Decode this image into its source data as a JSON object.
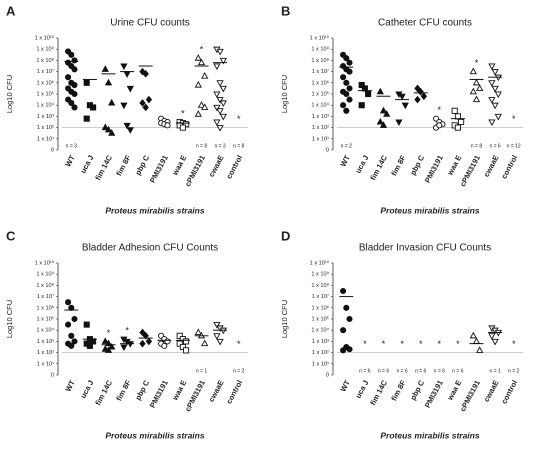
{
  "chart_data": [
    {
      "type": "dot",
      "letter": "A",
      "title": "Urine CFU counts",
      "ylabel": "Log10 CFU",
      "xlabel": "Proteus mirabilis strains",
      "categories": [
        "WT",
        "uca J",
        "fim 14C",
        "fim 8F",
        "pbp C",
        "PMI3191",
        "waa E",
        "cPMI3191",
        "cwaaE",
        "control"
      ],
      "markers": [
        "circle",
        "square",
        "triangle",
        "triangle-down",
        "diamond",
        "circle-open",
        "square-open",
        "triangle-open",
        "triangle-down-open",
        null
      ],
      "values": [
        [
          8.8,
          8.5,
          8.0,
          7.8,
          7.5,
          7.2,
          6.5,
          6.0,
          5.8,
          5.5,
          5.2,
          5.0,
          4.5,
          4.2,
          3.8
        ],
        [
          6.0,
          4.0,
          3.8,
          2.8
        ],
        [
          7.2,
          6.0,
          4.2,
          2.0,
          1.8,
          1.5
        ],
        [
          7.5,
          6.8,
          5.5,
          4.0,
          2.2,
          1.8
        ],
        [
          7.0,
          6.8,
          4.5,
          4.2,
          3.8
        ],
        [
          2.8,
          2.6,
          2.5,
          2.4,
          2.3,
          2.2
        ],
        [
          2.5,
          2.4,
          2.3,
          2.2,
          2.0
        ],
        [
          8.2,
          7.8,
          6.6,
          5.8,
          4.0,
          3.8,
          3.2
        ],
        [
          9.0,
          8.8,
          8.0,
          7.5,
          6.0,
          5.5,
          5.0,
          4.5,
          4.2,
          3.8,
          3.5,
          3.0,
          2.5,
          2.0
        ],
        []
      ],
      "means": [
        7.9,
        6.3,
        6.8,
        7.0,
        7.5,
        null,
        2.4,
        7.5,
        7.8,
        null
      ],
      "stars": [
        null,
        null,
        null,
        null,
        null,
        null,
        "*",
        "*",
        null,
        "*"
      ],
      "n_labels": [
        "n = 3",
        null,
        null,
        null,
        null,
        null,
        null,
        "n = 8",
        "n = 3",
        "n = 8"
      ],
      "threshold": 2,
      "color": "#111111",
      "ylim": [
        0,
        10
      ],
      "yticks": [
        0,
        {
          "value": 1,
          "label": "1 x 10¹"
        },
        {
          "value": 2,
          "label": "1 x 10²"
        },
        {
          "value": 3,
          "label": "1 x 10³"
        },
        {
          "value": 4,
          "label": "1 x 10⁴"
        },
        {
          "value": 5,
          "label": "1 x 10⁵"
        },
        {
          "value": 6,
          "label": "1 x 10⁶"
        },
        {
          "value": 7,
          "label": "1 x 10⁷"
        },
        {
          "value": 8,
          "label": "1 x 10⁸"
        },
        {
          "value": 9,
          "label": "1 x 10⁹"
        },
        {
          "value": 10,
          "label": "1 x 10¹⁰"
        }
      ]
    },
    {
      "type": "dot",
      "letter": "B",
      "title": "Catheter CFU counts",
      "ylabel": "Log10 CFU",
      "xlabel": "Proteus mirabilis strains",
      "categories": [
        "WT",
        "uca J",
        "fim 14C",
        "fim 8F",
        "pbp C",
        "PMI3191",
        "waa E",
        "cPMI3191",
        "cwaaE",
        "control"
      ],
      "markers": [
        "circle",
        "square",
        "triangle",
        "triangle-down",
        "diamond",
        "circle-open",
        "square-open",
        "triangle-open",
        "triangle-down-open",
        null
      ],
      "values": [
        [
          8.5,
          8.2,
          7.8,
          7.5,
          7.2,
          7.0,
          6.5,
          6.0,
          5.5,
          5.2,
          5.0,
          4.5,
          4.0,
          3.5
        ],
        [
          5.8,
          5.5,
          5.0,
          4.0
        ],
        [
          5.2,
          3.5,
          3.2,
          2.5,
          2.2
        ],
        [
          5.0,
          4.8,
          4.0,
          2.5
        ],
        [
          5.5,
          5.2,
          4.8,
          4.5
        ],
        [
          2.8,
          2.5,
          2.3,
          2.0,
          2.2
        ],
        [
          3.5,
          3.0,
          2.5,
          2.2,
          2.0
        ],
        [
          7.0,
          6.0,
          5.5,
          5.2,
          4.5
        ],
        [
          7.5,
          7.0,
          6.5,
          6.0,
          5.5,
          5.0,
          4.5,
          4.0,
          3.0,
          2.5
        ],
        []
      ],
      "means": [
        7.4,
        5.3,
        4.8,
        4.5,
        5.1,
        null,
        2.8,
        6.3,
        6.5,
        null
      ],
      "stars": [
        null,
        null,
        null,
        null,
        null,
        "*",
        null,
        "*",
        null,
        "*"
      ],
      "n_labels": [
        "n = 2",
        null,
        null,
        null,
        null,
        null,
        null,
        "n = 8",
        "n = 6",
        "n = 12"
      ],
      "threshold": 2,
      "color": "#111111",
      "ylim": [
        0,
        10
      ],
      "yticks": [
        0,
        {
          "value": 1,
          "label": "1 x 10¹"
        },
        {
          "value": 2,
          "label": "1 x 10²"
        },
        {
          "value": 3,
          "label": "1 x 10³"
        },
        {
          "value": 4,
          "label": "1 x 10⁴"
        },
        {
          "value": 5,
          "label": "1 x 10⁵"
        },
        {
          "value": 6,
          "label": "1 x 10⁶"
        },
        {
          "value": 7,
          "label": "1 x 10⁷"
        },
        {
          "value": 8,
          "label": "1 x 10⁸"
        },
        {
          "value": 9,
          "label": "1 x 10⁹"
        },
        {
          "value": 10,
          "label": "1 x 10¹⁰"
        }
      ]
    },
    {
      "type": "dot",
      "letter": "C",
      "title": "Bladder Adhesion CFU Counts",
      "ylabel": "Log10 CFU",
      "xlabel": "Proteus mirabilis strains",
      "categories": [
        "WT",
        "uca J",
        "fim 14C",
        "fim 8F",
        "pbp C",
        "PMI3191",
        "waa E",
        "cPMI3191",
        "cwaaE",
        "control"
      ],
      "markers": [
        "circle",
        "square",
        "triangle",
        "triangle-down",
        "diamond",
        "circle-open",
        "square-open",
        "triangle-open",
        "triangle-down-open",
        null
      ],
      "values": [
        [
          6.5,
          6.0,
          5.0,
          4.5,
          3.5,
          3.0,
          2.8,
          2.6
        ],
        [
          4.5,
          3.2,
          3.0,
          2.8,
          2.6
        ],
        [
          3.0,
          2.8,
          2.5,
          2.3,
          2.2
        ],
        [
          3.2,
          3.0,
          2.8,
          2.5
        ],
        [
          3.8,
          3.5,
          3.0,
          2.8
        ],
        [
          3.5,
          3.2,
          3.0,
          2.8,
          2.6
        ],
        [
          3.5,
          3.2,
          3.0,
          2.8,
          2.5,
          2.2
        ],
        [
          3.8,
          3.5,
          2.8
        ],
        [
          4.5,
          4.2,
          4.0,
          3.5,
          3.0
        ],
        []
      ],
      "means": [
        5.8,
        3.2,
        2.7,
        2.8,
        3.3,
        3.1,
        3.1,
        3.5,
        4.0,
        null
      ],
      "stars": [
        null,
        null,
        "*",
        "*",
        null,
        null,
        null,
        null,
        null,
        "*"
      ],
      "n_labels": [
        null,
        null,
        null,
        null,
        null,
        null,
        null,
        "n = 1",
        null,
        "n = 2"
      ],
      "threshold": 2,
      "color": "#111111",
      "ylim": [
        0,
        10
      ],
      "yticks": [
        0,
        {
          "value": 1,
          "label": "1 x 10¹"
        },
        {
          "value": 2,
          "label": "1 x 10²"
        },
        {
          "value": 3,
          "label": "1 x 10³"
        },
        {
          "value": 4,
          "label": "1 x 10⁴"
        },
        {
          "value": 5,
          "label": "1 x 10⁵"
        },
        {
          "value": 6,
          "label": "1 x 10⁶"
        },
        {
          "value": 7,
          "label": "1 x 10⁷"
        },
        {
          "value": 8,
          "label": "1 x 10⁸"
        },
        {
          "value": 9,
          "label": "1 x 10⁹"
        },
        {
          "value": 10,
          "label": "1 x 10¹⁰"
        }
      ]
    },
    {
      "type": "dot",
      "letter": "D",
      "title": "Bladder Invasion CFU Counts",
      "ylabel": "Log10 CFU",
      "xlabel": "Proteus mirabilis strains",
      "categories": [
        "WT",
        "uca J",
        "fim 14C",
        "fim 8F",
        "pbp C",
        "PMI3191",
        "waa E",
        "cPMI3191",
        "cwaaE",
        "control"
      ],
      "markers": [
        "circle",
        "square",
        "triangle",
        "triangle-down",
        "diamond",
        "circle-open",
        "square-open",
        "triangle-open",
        "triangle-down-open",
        null
      ],
      "values": [
        [
          7.5,
          6.0,
          5.0,
          4.0,
          2.5,
          2.3,
          2.2
        ],
        [],
        [],
        [],
        [],
        [],
        [],
        [
          3.5,
          3.0,
          2.2
        ],
        [
          4.2,
          4.0,
          3.8,
          3.5,
          3.0
        ],
        []
      ],
      "means": [
        7.0,
        null,
        null,
        null,
        null,
        null,
        null,
        2.8,
        3.8,
        null
      ],
      "stars": [
        null,
        "*",
        "*",
        "*",
        "*",
        "*",
        "*",
        null,
        null,
        "*"
      ],
      "n_labels": [
        null,
        "n = 6",
        "n = 6",
        "n = 6",
        "n = 6",
        "n = 6",
        "n = 6",
        null,
        "n = 1",
        "n = 2"
      ],
      "threshold": 2,
      "color": "#111111",
      "ylim": [
        0,
        10
      ],
      "yticks": [
        0,
        {
          "value": 1,
          "label": "1 x 10¹"
        },
        {
          "value": 2,
          "label": "1 x 10²"
        },
        {
          "value": 3,
          "label": "1 x 10³"
        },
        {
          "value": 4,
          "label": "1 x 10⁴"
        },
        {
          "value": 5,
          "label": "1 x 10⁵"
        },
        {
          "value": 6,
          "label": "1 x 10⁶"
        },
        {
          "value": 7,
          "label": "1 x 10⁷"
        },
        {
          "value": 8,
          "label": "1 x 10⁸"
        },
        {
          "value": 9,
          "label": "1 x 10⁹"
        },
        {
          "value": 10,
          "label": "1 x 10¹⁰"
        }
      ]
    }
  ]
}
